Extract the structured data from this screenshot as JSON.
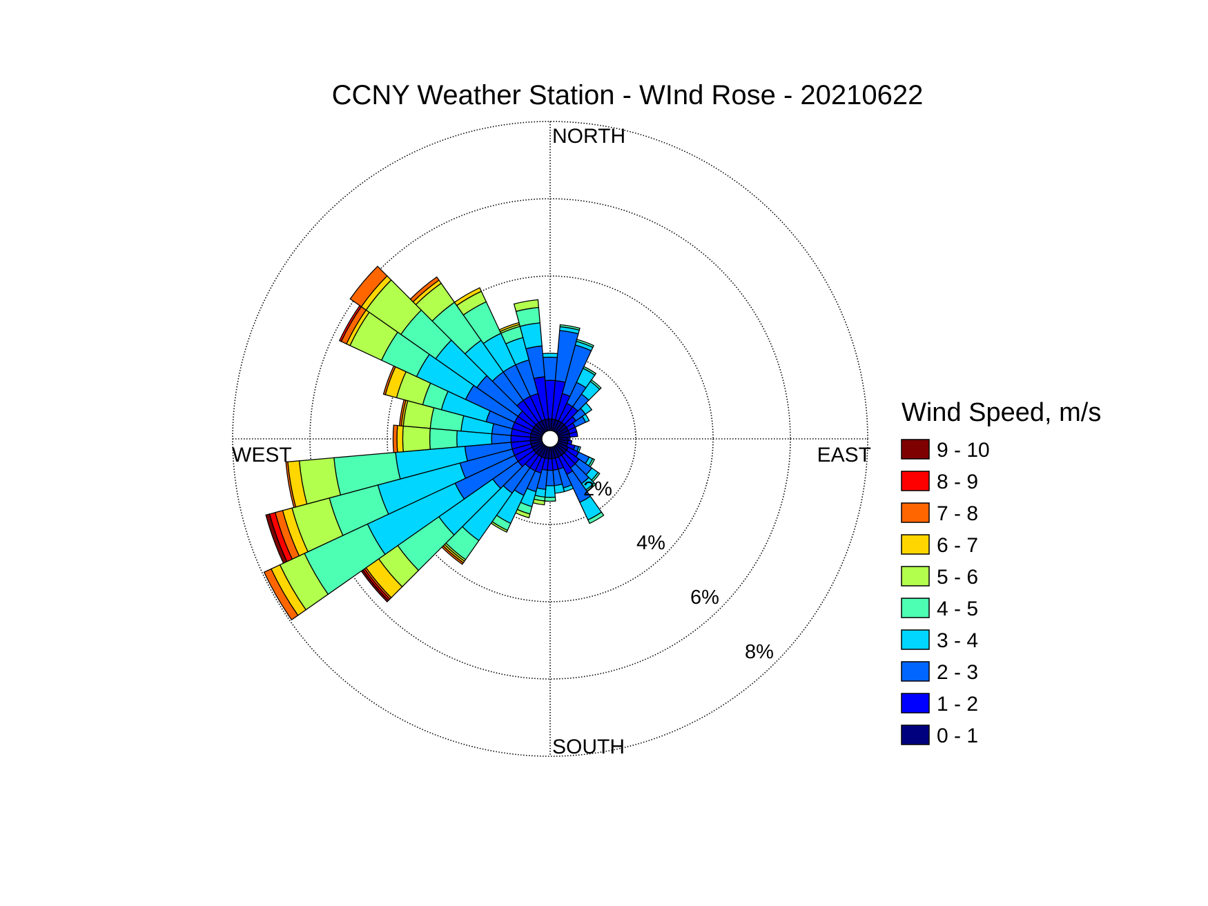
{
  "chart_data": {
    "type": "wind-rose",
    "title": "CCNY Weather Station - WInd Rose - 20210622",
    "directions": {
      "north": "NORTH",
      "south": "SOUTH",
      "east": "EAST",
      "west": "WEST"
    },
    "radial_unit": "%",
    "rings": [
      2,
      4,
      6,
      8
    ],
    "ring_labels": [
      "2%",
      "4%",
      "6%",
      "8%"
    ],
    "rmax": 8,
    "legend": {
      "title": "Wind Speed, m/s",
      "bins": [
        {
          "label": "0 - 1",
          "color": "#00007f"
        },
        {
          "label": "1 - 2",
          "color": "#0000ff"
        },
        {
          "label": "2 - 3",
          "color": "#0066ff"
        },
        {
          "label": "3 - 4",
          "color": "#00d6ff"
        },
        {
          "label": "4 - 5",
          "color": "#4dffb3"
        },
        {
          "label": "5 - 6",
          "color": "#b3ff4d"
        },
        {
          "label": "6 - 7",
          "color": "#ffd600"
        },
        {
          "label": "7 - 8",
          "color": "#ff6600"
        },
        {
          "label": "8 - 9",
          "color": "#ff0000"
        },
        {
          "label": "9 - 10",
          "color": "#7f0000"
        }
      ]
    },
    "sector_width_deg": 10,
    "sectors": [
      {
        "dir": 0,
        "cum": [
          0.3,
          1.3,
          1.9,
          2.0
        ]
      },
      {
        "dir": 10,
        "cum": [
          0.3,
          1.3,
          2.6,
          2.7,
          2.75
        ]
      },
      {
        "dir": 20,
        "cum": [
          0.3,
          1.0,
          2.3,
          2.4,
          2.45
        ]
      },
      {
        "dir": 30,
        "cum": [
          0.3,
          0.8,
          1.4,
          1.8,
          1.85
        ]
      },
      {
        "dir": 40,
        "cum": [
          0.3,
          0.8,
          1.2,
          1.6,
          1.65
        ]
      },
      {
        "dir": 50,
        "cum": [
          0.3,
          0.6,
          0.9,
          1.1
        ]
      },
      {
        "dir": 60,
        "cum": [
          0.3,
          0.5,
          0.8,
          0.9
        ]
      },
      {
        "dir": 70,
        "cum": [
          0.3,
          0.5
        ]
      },
      {
        "dir": 80,
        "cum": [
          0.3,
          0.5
        ]
      },
      {
        "dir": 90,
        "cum": [
          0.25,
          0.3
        ]
      },
      {
        "dir": 100,
        "cum": [
          0.25,
          0.35
        ]
      },
      {
        "dir": 110,
        "cum": [
          0.25,
          0.45,
          0.55,
          0.6
        ]
      },
      {
        "dir": 120,
        "cum": [
          0.3,
          0.6,
          0.9,
          1.0,
          1.05
        ]
      },
      {
        "dir": 130,
        "cum": [
          0.3,
          0.7,
          1.1,
          1.3,
          1.35
        ]
      },
      {
        "dir": 140,
        "cum": [
          0.3,
          0.7,
          1.2,
          1.4,
          1.45
        ]
      },
      {
        "dir": 150,
        "cum": [
          0.3,
          0.8,
          1.6,
          2.1,
          2.2
        ]
      },
      {
        "dir": 160,
        "cum": [
          0.3,
          0.6,
          1.1,
          1.2
        ]
      },
      {
        "dir": 170,
        "cum": [
          0.3,
          0.6,
          1.0,
          1.2
        ]
      },
      {
        "dir": 180,
        "cum": [
          0.3,
          0.6,
          1.0,
          1.3,
          1.4
        ]
      },
      {
        "dir": 190,
        "cum": [
          0.3,
          0.6,
          1.1,
          1.3,
          1.4,
          1.5
        ]
      },
      {
        "dir": 200,
        "cum": [
          0.3,
          0.7,
          1.2,
          1.6,
          1.8,
          1.9
        ]
      },
      {
        "dir": 210,
        "cum": [
          0.3,
          0.7,
          1.4,
          2.2,
          2.4,
          2.45
        ]
      },
      {
        "dir": 220,
        "cum": [
          0.3,
          0.7,
          1.5,
          3.0,
          3.6,
          3.65,
          3.7,
          3.75
        ]
      },
      {
        "dir": 230,
        "cum": [
          0.3,
          0.8,
          1.6,
          3.3,
          4.6,
          5.2,
          5.6,
          5.65,
          5.7,
          5.75
        ]
      },
      {
        "dir": 240,
        "cum": [
          0.3,
          0.8,
          2.5,
          5.0,
          6.8,
          7.5,
          7.75,
          7.95
        ]
      },
      {
        "dir": 250,
        "cum": [
          0.3,
          0.8,
          2.2,
          4.4,
          5.7,
          6.7,
          6.95,
          7.15,
          7.3,
          7.4
        ]
      },
      {
        "dir": 260,
        "cum": [
          0.3,
          0.8,
          2.0,
          3.8,
          5.4,
          6.3,
          6.6,
          6.65
        ]
      },
      {
        "dir": 270,
        "cum": [
          0.3,
          0.8,
          1.3,
          2.2,
          2.9,
          3.6,
          3.75,
          3.85
        ]
      },
      {
        "dir": 280,
        "cum": [
          0.3,
          0.8,
          1.3,
          2.1,
          2.9,
          3.6,
          3.65,
          3.7
        ]
      },
      {
        "dir": 290,
        "cum": [
          0.3,
          0.8,
          1.5,
          2.7,
          3.2,
          3.9,
          4.2,
          4.25
        ]
      },
      {
        "dir": 300,
        "cum": [
          0.3,
          0.8,
          2.2,
          3.6,
          4.6,
          5.5,
          5.6,
          5.75,
          5.8
        ]
      },
      {
        "dir": 310,
        "cum": [
          0.3,
          0.8,
          2.1,
          3.4,
          4.5,
          5.6,
          5.75,
          6.1
        ]
      },
      {
        "dir": 320,
        "cum": [
          0.3,
          1.0,
          1.9,
          2.9,
          4.1,
          4.7,
          4.8,
          4.9
        ]
      },
      {
        "dir": 330,
        "cum": [
          0.3,
          1.0,
          1.9,
          2.8,
          3.7,
          4.0,
          4.1
        ]
      },
      {
        "dir": 340,
        "cum": [
          0.3,
          1.0,
          1.9,
          2.5,
          2.8,
          2.85,
          2.9
        ]
      },
      {
        "dir": 350,
        "cum": [
          0.3,
          1.4,
          2.2,
          2.8,
          3.2,
          3.4
        ]
      }
    ]
  }
}
